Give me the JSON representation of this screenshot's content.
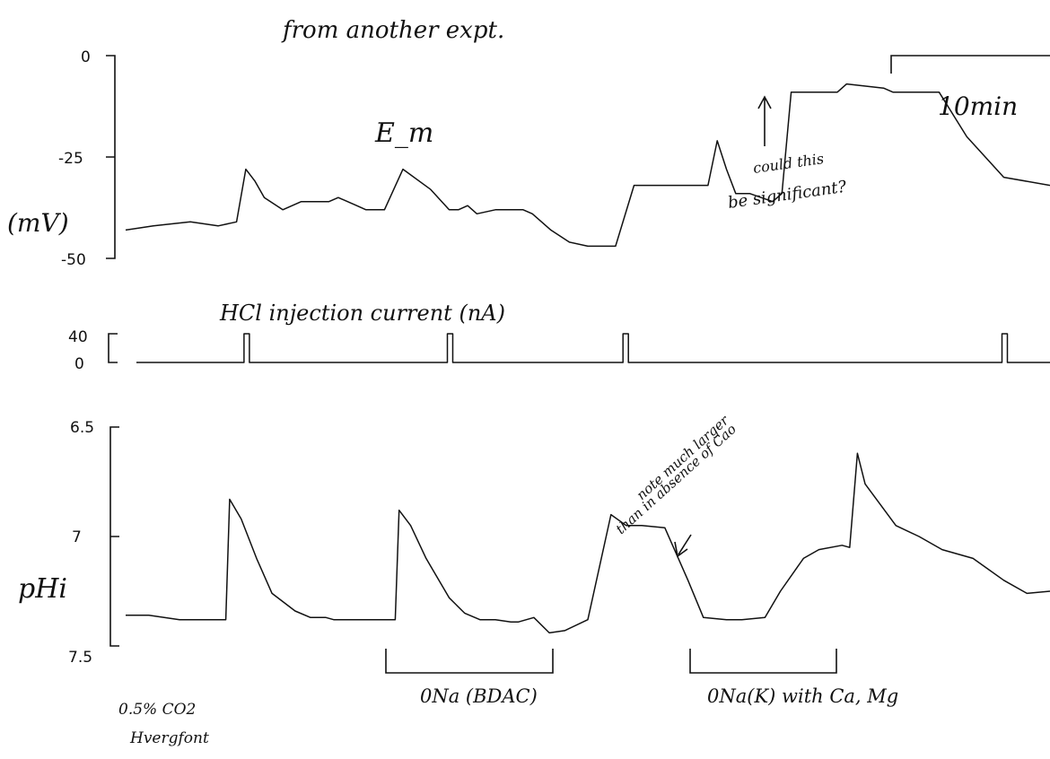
{
  "chart_data": [
    {
      "id": "em",
      "type": "line",
      "title": "from another expt.",
      "ylabel": "(mV)",
      "trace_label": "E_m",
      "yticks": [
        "0",
        "-25",
        "-50"
      ],
      "ylim": [
        -50,
        0
      ],
      "xlabel": "",
      "scale_bar_label": "10min",
      "x": [
        0,
        3,
        7,
        10,
        12,
        13,
        14,
        15,
        17,
        19,
        22,
        23,
        25,
        26,
        28,
        30,
        33,
        35,
        36,
        37,
        38,
        40,
        43,
        44,
        46,
        48,
        50,
        51,
        53,
        55,
        57,
        58,
        60,
        63,
        64,
        65,
        66,
        67,
        67.5,
        70,
        71,
        72,
        73,
        74,
        75,
        77,
        78,
        82,
        83,
        85,
        88,
        91,
        95,
        100
      ],
      "series": [
        {
          "values": [
            -43,
            -42,
            -41,
            -42,
            -41,
            -28,
            -31,
            -35,
            -38,
            -36,
            -36,
            -35,
            -37,
            -38,
            -38,
            -28,
            -33,
            -38,
            -38,
            -37,
            -39,
            -38,
            -38,
            -39,
            -43,
            -46,
            -47,
            -47,
            -47,
            -32,
            -32,
            -32,
            -32,
            -32,
            -21,
            -28,
            -34,
            -34,
            -34,
            -36,
            -34,
            -9,
            -9,
            -9,
            -9,
            -9,
            -7,
            -8,
            -9,
            -9,
            -9,
            -20,
            -30,
            -32
          ]
        }
      ]
    },
    {
      "id": "current",
      "type": "line",
      "title": "HCl injection current (nA)",
      "yticks": [
        "40",
        "0"
      ],
      "ylim": [
        0,
        40
      ],
      "pulses_at_x": [
        13,
        35,
        54,
        95
      ],
      "pulse_value": 40
    },
    {
      "id": "phi",
      "type": "line",
      "ylabel": "pHi",
      "yticks": [
        "6.5",
        "7",
        "7.5"
      ],
      "ylim": [
        7.5,
        6.5
      ],
      "x": [
        0,
        3,
        7,
        12,
        13,
        13.5,
        15,
        17,
        19,
        22,
        24,
        26,
        27,
        28,
        30,
        33,
        35,
        35.5,
        37,
        39,
        42,
        44,
        46,
        48,
        50,
        51,
        53,
        55,
        57,
        60,
        63,
        65,
        67,
        70,
        73,
        75,
        78,
        80,
        83,
        85,
        88,
        90,
        93,
        94,
        95,
        96,
        100,
        103,
        106,
        110,
        114,
        117,
        120
      ],
      "series": [
        {
          "values": [
            7.36,
            7.36,
            7.38,
            7.38,
            7.38,
            6.83,
            6.92,
            7.1,
            7.26,
            7.34,
            7.37,
            7.37,
            7.38,
            7.38,
            7.38,
            7.38,
            7.38,
            6.88,
            6.95,
            7.1,
            7.28,
            7.35,
            7.38,
            7.38,
            7.39,
            7.39,
            7.37,
            7.44,
            7.43,
            7.38,
            6.9,
            6.95,
            6.95,
            6.96,
            7.2,
            7.37,
            7.38,
            7.38,
            7.37,
            7.25,
            7.1,
            7.06,
            7.04,
            7.05,
            6.62,
            6.76,
            6.95,
            7.0,
            7.06,
            7.1,
            7.2,
            7.26,
            7.25
          ]
        }
      ]
    }
  ],
  "annotations": {
    "significant_line1": "could this",
    "significant_line2": "be significant?",
    "note_line1": "note much larger",
    "note_line2": "than in absence of Cao"
  },
  "bars": {
    "co2_line1": "0.5% CO2",
    "co2_line2": "Hvergfont",
    "ona_bdac": "0Na (BDAC)",
    "ona_k": "0Na(K) with Ca, Mg"
  }
}
